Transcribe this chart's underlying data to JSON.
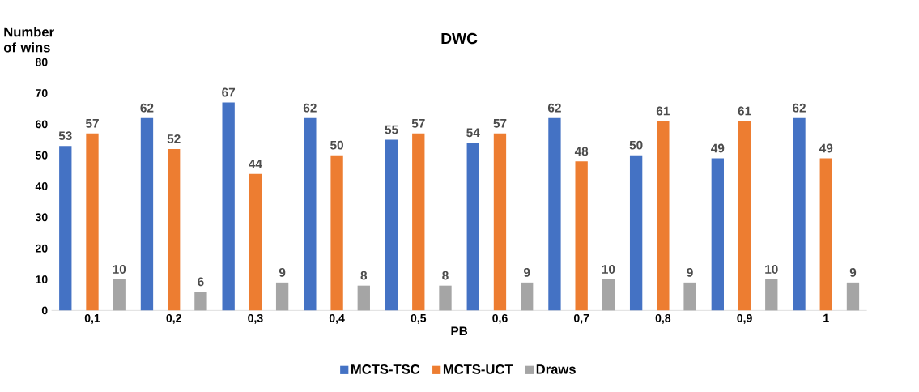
{
  "chart_data": {
    "type": "bar",
    "title": "DWC",
    "xlabel": "PB",
    "ylabel": "Number of wins",
    "categories": [
      "0,1",
      "0,2",
      "0,3",
      "0,4",
      "0,5",
      "0,6",
      "0,7",
      "0,8",
      "0,9",
      "1"
    ],
    "series": [
      {
        "name": "MCTS-TSC",
        "color": "#4472c4",
        "values": [
          53,
          62,
          67,
          62,
          55,
          54,
          62,
          50,
          49,
          62
        ]
      },
      {
        "name": "MCTS-UCT",
        "color": "#ed7d31",
        "values": [
          57,
          52,
          44,
          50,
          57,
          57,
          48,
          61,
          61,
          49
        ]
      },
      {
        "name": "Draws",
        "color": "#a5a5a5",
        "values": [
          10,
          6,
          9,
          8,
          8,
          9,
          10,
          9,
          10,
          9
        ]
      }
    ],
    "ylim": [
      0,
      80
    ],
    "yticks": [
      0,
      10,
      20,
      30,
      40,
      50,
      60,
      70,
      80
    ],
    "data_labels": true,
    "legend": "bottom"
  }
}
